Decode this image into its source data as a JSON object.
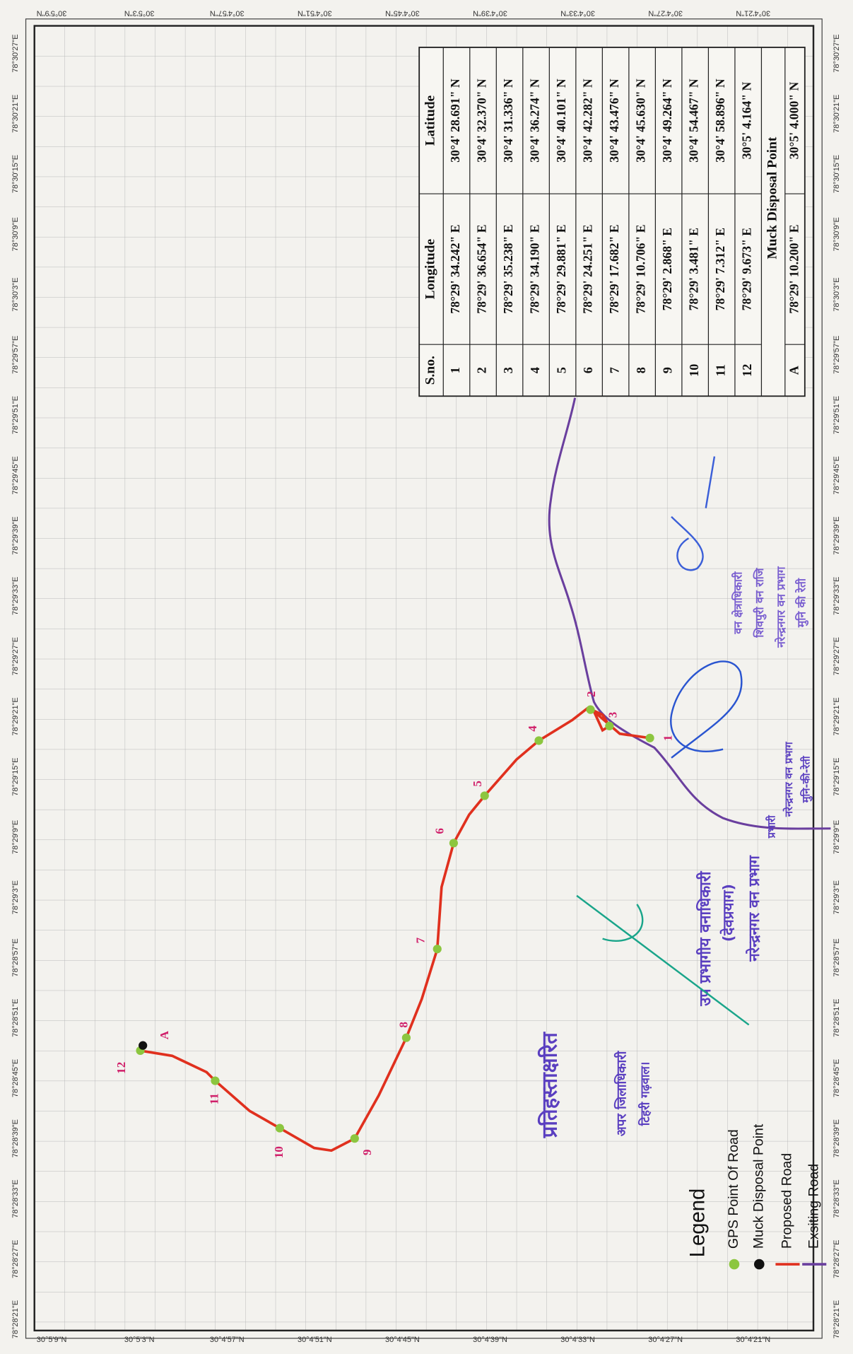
{
  "table": {
    "headers": [
      "S.no.",
      "Longitude",
      "Latitude"
    ],
    "rows": [
      [
        "1",
        "78°29' 34.242\" E",
        "30°4' 28.691\" N"
      ],
      [
        "2",
        "78°29' 36.654\" E",
        "30°4' 32.370\" N"
      ],
      [
        "3",
        "78°29' 35.238\" E",
        "30°4' 31.336\" N"
      ],
      [
        "4",
        "78°29' 34.190\" E",
        "30°4' 36.274\" N"
      ],
      [
        "5",
        "78°29' 29.881\" E",
        "30°4' 40.101\" N"
      ],
      [
        "6",
        "78°29' 24.251\" E",
        "30°4' 42.282\" N"
      ],
      [
        "7",
        "78°29' 17.682\" E",
        "30°4' 43.476\" N"
      ],
      [
        "8",
        "78°29' 10.706\" E",
        "30°4' 45.630\" N"
      ],
      [
        "9",
        "78°29' 2.868\" E",
        "30°4' 49.264\" N"
      ],
      [
        "10",
        "78°29' 3.481\" E",
        "30°4' 54.467\" N"
      ],
      [
        "11",
        "78°29' 7.312\" E",
        "30°4' 58.896\" N"
      ],
      [
        "12",
        "78°29' 9.673\" E",
        "30°5' 4.164\" N"
      ]
    ],
    "section": "Muck Disposal Point",
    "muck_row": [
      "A",
      "78°29' 10.200\" E",
      "30°5' 4.000\" N"
    ]
  },
  "legend": {
    "title": "Legend",
    "items": [
      "GPS Point Of Road",
      "Muck Disposal Point",
      "Proposed Road",
      "Exsiting Road"
    ]
  },
  "points": [
    "1",
    "2",
    "3",
    "4",
    "5",
    "6",
    "7",
    "8",
    "9",
    "10",
    "11",
    "12",
    "A"
  ],
  "annotations": [
    "प्रतिहस्ताक्षरित",
    "अपर जिलाधिकारी",
    "टिहरी गढ़वाल।",
    "उप प्रभागीय वनाधिकारी",
    "(देवप्रयाग)",
    "नरेन्द्रनगर वन प्रभाग",
    "वन क्षेत्राधिकारी",
    "शिवपुरी वन राजि",
    "नरेन्द्रनगर वन प्रभाग",
    "मुनि की रेती",
    "प्रभारी",
    "नरेन्द्रनगर वन प्रभाग",
    "मुनि-की-रेती"
  ],
  "lat_labels": [
    "30°5'9\"N",
    "30°5'3\"N",
    "30°4'57\"N",
    "30°4'51\"N",
    "30°4'45\"N",
    "30°4'39\"N",
    "30°4'33\"N",
    "30°4'27\"N",
    "30°4'21\"N"
  ],
  "lon_labels": [
    "78°30'27\"E",
    "78°30'21\"E",
    "78°30'15\"E",
    "78°30'9\"E",
    "78°30'3\"E",
    "78°29'57\"E",
    "78°29'51\"E",
    "78°29'45\"E",
    "78°29'39\"E",
    "78°29'33\"E",
    "78°29'27\"E",
    "78°29'21\"E",
    "78°29'15\"E",
    "78°29'9\"E",
    "78°29'3\"E",
    "78°28'57\"E",
    "78°28'51\"E",
    "78°28'45\"E",
    "78°28'39\"E",
    "78°28'33\"E",
    "78°28'27\"E",
    "78°28'21\"E"
  ]
}
